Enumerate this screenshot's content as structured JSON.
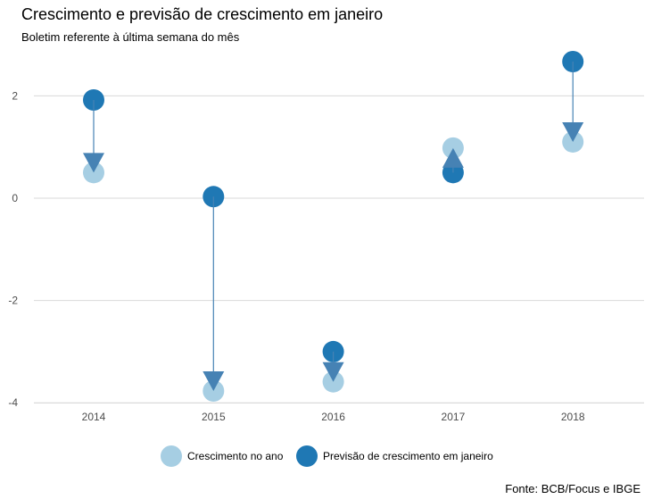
{
  "chart_data": {
    "type": "scatter",
    "title": "Crescimento e previsão de crescimento em janeiro",
    "subtitle": "Boletim referente à última semana do mês",
    "caption": "Fonte: BCB/Focus e IBGE",
    "xlabel": "",
    "ylabel": "",
    "categories": [
      "2014",
      "2015",
      "2016",
      "2017",
      "2018"
    ],
    "ylim": [
      -4.2,
      2.9
    ],
    "yticks": [
      2,
      0,
      -2,
      -4
    ],
    "ytick_labels": [
      "2",
      "0",
      "-2",
      "-4"
    ],
    "grid": "horizontal",
    "legend_position": "bottom",
    "series": [
      {
        "name": "Crescimento no ano",
        "color": "#a6cee3",
        "values": [
          0.5,
          -3.77,
          -3.59,
          0.98,
          1.1
        ]
      },
      {
        "name": "Previsão de crescimento em janeiro",
        "color": "#1f78b4",
        "values": [
          1.92,
          0.03,
          -3.0,
          0.5,
          2.67
        ]
      }
    ],
    "arrow_color": "#4682b4"
  }
}
